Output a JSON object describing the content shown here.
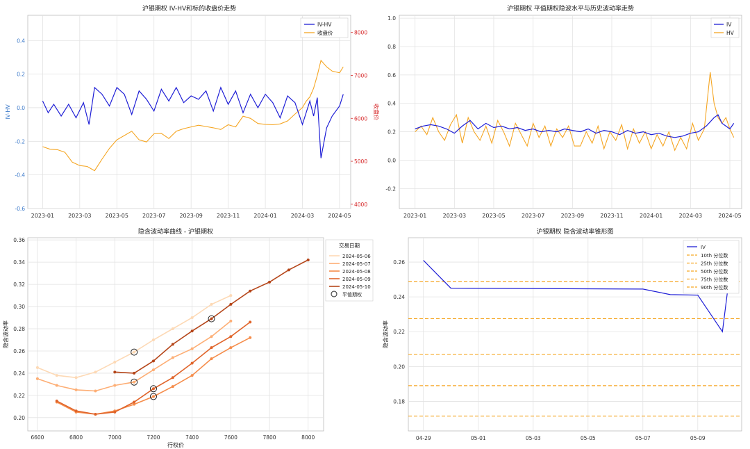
{
  "chart_data": [
    {
      "type": "line",
      "title": "沪银期权 IV-HV和标的收盘价走势",
      "ylabel": "IV-HV",
      "y2label": "收盘价",
      "ylim": [
        -0.6,
        0.55
      ],
      "y2lim": [
        3900,
        8400
      ],
      "yticks": [
        -0.6,
        -0.4,
        -0.2,
        0.0,
        0.2,
        0.4
      ],
      "ytick_labels": [
        "-0.6",
        "-0.4",
        "-0.2",
        "0.0",
        "0.2",
        "0.4"
      ],
      "y2ticks": [
        4000,
        5000,
        6000,
        7000,
        8000
      ],
      "y2tick_labels": [
        "4000",
        "5000",
        "6000",
        "7000",
        "8000"
      ],
      "xticks": [
        "2023-01",
        "2023-03",
        "2023-05",
        "2023-07",
        "2023-09",
        "2023-11",
        "2024-01",
        "2024-03",
        "2024-05"
      ],
      "grid": true,
      "legend": "top-right",
      "colors": {
        "ivhv": "#1f1fd6",
        "close": "#f5a623",
        "left_axis": "#3a78c9",
        "right_axis": "#d62728"
      },
      "series": [
        {
          "name": "IV-HV",
          "axis": "left",
          "x": [
            0,
            0.3,
            0.6,
            1,
            1.4,
            1.8,
            2.2,
            2.5,
            2.8,
            3.2,
            3.6,
            4,
            4.4,
            4.8,
            5.2,
            5.6,
            6,
            6.4,
            6.8,
            7.2,
            7.6,
            8,
            8.4,
            8.8,
            9.2,
            9.6,
            10,
            10.4,
            10.8,
            11.2,
            11.6,
            12,
            12.4,
            12.8,
            13.2,
            13.6,
            14,
            14.4,
            14.6,
            14.8,
            15,
            15.3,
            15.6,
            16,
            16.2
          ],
          "y": [
            0.04,
            -0.03,
            0.02,
            -0.05,
            0.02,
            -0.06,
            0.03,
            -0.1,
            0.12,
            0.08,
            0.01,
            0.12,
            0.08,
            -0.04,
            0.1,
            0.05,
            -0.02,
            0.11,
            0.04,
            0.12,
            0.03,
            0.07,
            0.05,
            0.1,
            -0.02,
            0.12,
            0.02,
            0.1,
            -0.03,
            0.08,
            0.0,
            0.08,
            0.03,
            -0.06,
            0.07,
            0.03,
            -0.1,
            0.04,
            -0.05,
            0.06,
            -0.3,
            -0.12,
            -0.05,
            0.01,
            0.08
          ]
        },
        {
          "name": "收盘价",
          "axis": "right",
          "x": [
            0,
            0.4,
            0.8,
            1.2,
            1.6,
            2,
            2.4,
            2.8,
            3.2,
            3.6,
            4,
            4.4,
            4.8,
            5.2,
            5.6,
            6,
            6.4,
            6.8,
            7.2,
            7.6,
            8,
            8.4,
            8.8,
            9.2,
            9.6,
            10,
            10.4,
            10.8,
            11.2,
            11.6,
            12,
            12.4,
            12.8,
            13.2,
            13.6,
            14,
            14.2,
            14.4,
            14.6,
            14.8,
            15,
            15.3,
            15.6,
            16,
            16.2
          ],
          "y": [
            5340,
            5280,
            5270,
            5210,
            4980,
            4900,
            4880,
            4780,
            5050,
            5300,
            5500,
            5600,
            5700,
            5500,
            5450,
            5640,
            5650,
            5530,
            5700,
            5760,
            5800,
            5840,
            5810,
            5780,
            5740,
            5850,
            5800,
            6050,
            6000,
            5880,
            5860,
            5850,
            5870,
            5940,
            6100,
            6250,
            6400,
            6500,
            6700,
            7000,
            7350,
            7200,
            7100,
            7060,
            7200
          ]
        }
      ]
    },
    {
      "type": "line",
      "title": "沪银期权 平值期权隐波水平与历史波动率走势",
      "ylim": [
        -0.34,
        1.02
      ],
      "yticks": [
        -0.2,
        0.0,
        0.2,
        0.4,
        0.6,
        0.8,
        1.0
      ],
      "ytick_labels": [
        "-0.2",
        "0.0",
        "0.2",
        "0.4",
        "0.6",
        "0.8",
        "1.0"
      ],
      "xticks": [
        "2023-01",
        "2023-03",
        "2023-05",
        "2023-07",
        "2023-09",
        "2023-11",
        "2024-01",
        "2024-03",
        "2024-05"
      ],
      "grid": true,
      "legend": "top-right",
      "colors": {
        "iv": "#1f1fd6",
        "hv": "#f5a623"
      },
      "series": [
        {
          "name": "IV",
          "x": [
            0,
            0.4,
            0.8,
            1.2,
            1.6,
            2,
            2.4,
            2.8,
            3.2,
            3.6,
            4,
            4.4,
            4.8,
            5.2,
            5.6,
            6,
            6.4,
            6.8,
            7.2,
            7.6,
            8,
            8.4,
            8.8,
            9.2,
            9.6,
            10,
            10.4,
            10.8,
            11.2,
            11.6,
            12,
            12.4,
            12.8,
            13.2,
            13.6,
            14,
            14.4,
            14.8,
            15,
            15.2,
            15.4,
            15.6,
            15.8,
            16,
            16.2
          ],
          "y": [
            0.22,
            0.24,
            0.25,
            0.24,
            0.22,
            0.19,
            0.24,
            0.28,
            0.22,
            0.26,
            0.23,
            0.24,
            0.22,
            0.23,
            0.21,
            0.22,
            0.2,
            0.21,
            0.2,
            0.22,
            0.21,
            0.2,
            0.22,
            0.19,
            0.21,
            0.2,
            0.18,
            0.21,
            0.19,
            0.2,
            0.18,
            0.19,
            0.17,
            0.16,
            0.17,
            0.19,
            0.2,
            0.24,
            0.27,
            0.3,
            0.32,
            0.26,
            0.24,
            0.22,
            0.26
          ]
        },
        {
          "name": "HV",
          "x": [
            0,
            0.3,
            0.6,
            0.9,
            1.2,
            1.5,
            1.8,
            2.1,
            2.4,
            2.7,
            3,
            3.3,
            3.6,
            3.9,
            4.2,
            4.5,
            4.8,
            5.1,
            5.4,
            5.7,
            6,
            6.3,
            6.6,
            6.9,
            7.2,
            7.5,
            7.8,
            8.1,
            8.4,
            8.7,
            9,
            9.3,
            9.6,
            9.9,
            10.2,
            10.5,
            10.8,
            11.1,
            11.4,
            11.7,
            12,
            12.3,
            12.6,
            12.9,
            13.2,
            13.5,
            13.8,
            14.1,
            14.4,
            14.7,
            15,
            15.2,
            15.4,
            15.6,
            15.8,
            16,
            16.2
          ],
          "y": [
            0.2,
            0.24,
            0.18,
            0.3,
            0.2,
            0.14,
            0.25,
            0.32,
            0.12,
            0.3,
            0.2,
            0.14,
            0.24,
            0.12,
            0.28,
            0.2,
            0.1,
            0.26,
            0.18,
            0.1,
            0.26,
            0.16,
            0.24,
            0.1,
            0.22,
            0.16,
            0.24,
            0.1,
            0.1,
            0.2,
            0.12,
            0.24,
            0.08,
            0.2,
            0.14,
            0.25,
            0.08,
            0.22,
            0.12,
            0.2,
            0.08,
            0.18,
            0.1,
            0.2,
            0.07,
            0.16,
            0.08,
            0.26,
            0.14,
            0.22,
            0.62,
            0.4,
            0.3,
            0.26,
            0.3,
            0.22,
            0.16
          ]
        }
      ]
    },
    {
      "type": "line",
      "title": "隐含波动率曲线 - 沪银期权",
      "xlabel": "行权价",
      "ylabel": "隐含波动率",
      "xlim": [
        6550,
        8080
      ],
      "ylim": [
        0.188,
        0.362
      ],
      "xticks": [
        6600,
        6800,
        7000,
        7200,
        7400,
        7600,
        7800,
        8000
      ],
      "xtick_labels": [
        "6600",
        "6800",
        "7000",
        "7200",
        "7400",
        "7600",
        "7800",
        "8000"
      ],
      "yticks": [
        0.2,
        0.22,
        0.24,
        0.26,
        0.28,
        0.3,
        0.32,
        0.34,
        0.36
      ],
      "ytick_labels": [
        "0.20",
        "0.22",
        "0.24",
        "0.26",
        "0.28",
        "0.30",
        "0.32",
        "0.34",
        "0.36"
      ],
      "grid": true,
      "legend": "top-right",
      "legend_title": "交易日期",
      "atm_label": "平值期权",
      "series": [
        {
          "name": "2024-05-06",
          "color": "#fdd9b5",
          "x": [
            6600,
            6700,
            6800,
            6900,
            7000,
            7100,
            7200,
            7300,
            7400,
            7500,
            7600
          ],
          "y": [
            0.245,
            0.238,
            0.236,
            0.241,
            0.25,
            0.259,
            0.27,
            0.28,
            0.29,
            0.302,
            0.31
          ],
          "atm": [
            7100,
            0.259
          ]
        },
        {
          "name": "2024-05-07",
          "color": "#fdae75",
          "x": [
            6600,
            6700,
            6800,
            6900,
            7000,
            7100,
            7200,
            7300,
            7400,
            7500,
            7600
          ],
          "y": [
            0.235,
            0.229,
            0.225,
            0.224,
            0.229,
            0.232,
            0.243,
            0.254,
            0.262,
            0.273,
            0.287
          ],
          "atm": [
            7100,
            0.232
          ]
        },
        {
          "name": "2024-05-08",
          "color": "#f58c4a",
          "x": [
            6700,
            6800,
            6900,
            7000,
            7100,
            7200,
            7300,
            7400,
            7500,
            7600,
            7700
          ],
          "y": [
            0.214,
            0.205,
            0.203,
            0.206,
            0.212,
            0.219,
            0.228,
            0.238,
            0.253,
            0.263,
            0.272
          ],
          "atm": [
            7200,
            0.219
          ]
        },
        {
          "name": "2024-05-09",
          "color": "#e0642a",
          "x": [
            6700,
            6800,
            6900,
            7000,
            7100,
            7200,
            7300,
            7400,
            7500,
            7600,
            7700
          ],
          "y": [
            0.215,
            0.206,
            0.203,
            0.205,
            0.214,
            0.226,
            0.236,
            0.249,
            0.263,
            0.273,
            0.286
          ],
          "atm": [
            7200,
            0.226
          ]
        },
        {
          "name": "2024-05-10",
          "color": "#b5461a",
          "x": [
            7000,
            7100,
            7200,
            7300,
            7400,
            7500,
            7600,
            7700,
            7800,
            7900,
            8000
          ],
          "y": [
            0.241,
            0.24,
            0.251,
            0.266,
            0.278,
            0.289,
            0.302,
            0.314,
            0.322,
            0.333,
            0.342
          ],
          "atm": [
            7500,
            0.289
          ]
        }
      ]
    },
    {
      "type": "line",
      "title": "沪银期权 隐含波动率锥形图",
      "ylabel": "隐含波动率",
      "ylim": [
        0.163,
        0.274
      ],
      "yticks": [
        0.18,
        0.2,
        0.22,
        0.24,
        0.26
      ],
      "ytick_labels": [
        "0.18",
        "0.20",
        "0.22",
        "0.24",
        "0.26"
      ],
      "xticks": [
        "04-29",
        "05-01",
        "05-03",
        "05-05",
        "05-07",
        "05-09"
      ],
      "grid": true,
      "legend": "top-right",
      "colors": {
        "iv": "#1f1fd6",
        "percentile": "#f5a623"
      },
      "series": [
        {
          "name": "IV",
          "x": [
            0,
            1,
            8,
            9,
            10,
            11.3
          ],
          "y": [
            0.261,
            0.245,
            0.2445,
            0.2413,
            0.241,
            0.27
          ],
          "dip": [
            10.9,
            0.22
          ]
        }
      ],
      "percentiles": [
        {
          "name": "10th 分位数",
          "y": 0.1715
        },
        {
          "name": "25th 分位数",
          "y": 0.189
        },
        {
          "name": "50th 分位数",
          "y": 0.207
        },
        {
          "name": "75th 分位数",
          "y": 0.2275
        },
        {
          "name": "90th 分位数",
          "y": 0.2487
        }
      ]
    }
  ]
}
